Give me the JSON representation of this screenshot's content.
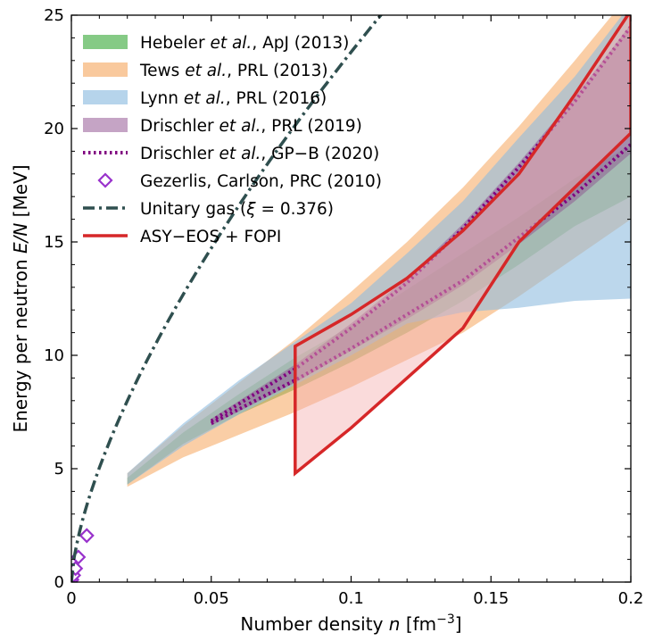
{
  "chart_data": {
    "type": "area",
    "xlabel": "Number density n [fm^-3]",
    "ylabel": "Energy per neutron E/N [MeV]",
    "xlim": [
      0,
      0.2
    ],
    "ylim": [
      0,
      25
    ],
    "x_ticks": [
      0,
      0.05,
      0.1,
      0.15,
      0.2
    ],
    "x_tick_labels": [
      "0",
      "0.05",
      "0.1",
      "0.15",
      "0.2"
    ],
    "y_ticks": [
      0,
      5,
      10,
      15,
      20,
      25
    ],
    "y_tick_labels": [
      "0",
      "5",
      "10",
      "15",
      "20",
      "25"
    ],
    "legend_position": "top-left",
    "grid": false,
    "series": [
      {
        "name": "Hebeler et al., ApJ (2013)",
        "kind": "band",
        "color": "#5cb85c",
        "opacity": 0.7,
        "x": [
          0.02,
          0.04,
          0.06,
          0.08,
          0.1,
          0.12,
          0.14,
          0.16,
          0.18,
          0.2
        ],
        "upper": [
          4.6,
          6.6,
          8.3,
          9.9,
          11.3,
          12.9,
          14.5,
          16.1,
          17.8,
          19.3
        ],
        "lower": [
          4.3,
          6.1,
          7.4,
          8.5,
          9.7,
          11.0,
          12.4,
          14.0,
          15.7,
          17.0
        ]
      },
      {
        "name": "Tews et al., PRL (2013)",
        "kind": "band",
        "color": "#f5a55c",
        "opacity": 0.55,
        "x": [
          0.02,
          0.04,
          0.06,
          0.08,
          0.1,
          0.12,
          0.14,
          0.16,
          0.18,
          0.2
        ],
        "upper": [
          4.8,
          6.9,
          8.8,
          10.7,
          12.8,
          15.0,
          17.4,
          20.1,
          23.0,
          26.0
        ],
        "lower": [
          4.2,
          5.5,
          6.5,
          7.5,
          8.6,
          9.8,
          11.0,
          12.6,
          14.3,
          16.0
        ]
      },
      {
        "name": "Lynn et al., PRL (2016)",
        "kind": "band",
        "color": "#8fbde0",
        "opacity": 0.6,
        "x": [
          0.02,
          0.04,
          0.06,
          0.08,
          0.1,
          0.12,
          0.14,
          0.16,
          0.18,
          0.2
        ],
        "upper": [
          4.8,
          7.0,
          8.9,
          10.6,
          12.3,
          14.5,
          16.8,
          19.6,
          22.3,
          25.5
        ],
        "lower": [
          4.3,
          6.0,
          7.4,
          8.7,
          10.0,
          11.4,
          11.9,
          12.1,
          12.4,
          12.5
        ]
      },
      {
        "name": "Drischler et al., PRL (2019)",
        "kind": "band",
        "color": "#8b4a8b",
        "opacity": 0.45,
        "x": [
          0.05,
          0.08,
          0.1,
          0.12,
          0.14,
          0.16,
          0.18,
          0.2
        ],
        "upper": [
          7.2,
          9.6,
          11.4,
          13.4,
          15.8,
          18.5,
          21.4,
          24.6
        ],
        "lower": [
          6.9,
          8.8,
          10.2,
          11.6,
          13.1,
          14.9,
          16.8,
          18.9
        ]
      },
      {
        "name": "Drischler et al., GP−B (2020)",
        "kind": "dotted-pair",
        "color": "#800080",
        "x": [
          0.05,
          0.08,
          0.1,
          0.12,
          0.14,
          0.16,
          0.18,
          0.2
        ],
        "upper": [
          7.1,
          9.4,
          11.2,
          13.2,
          15.6,
          18.3,
          21.2,
          24.5
        ],
        "lower": [
          7.0,
          8.9,
          10.3,
          11.8,
          13.3,
          15.2,
          17.1,
          19.3
        ]
      },
      {
        "name": "Gezerlis, Carlson, PRC (2010)",
        "kind": "markers",
        "color": "#9932cc",
        "x": [
          0.0002,
          0.0008,
          0.0015,
          0.0025,
          0.0055
        ],
        "y": [
          0.1,
          0.3,
          0.6,
          1.1,
          2.05
        ]
      },
      {
        "name": "Unitary gas (ξ = 0.376)",
        "kind": "line",
        "color": "#2f4f4f",
        "curve": "power",
        "coefficient": 108.5,
        "exponent": 0.6667,
        "x_range": [
          0,
          0.2
        ]
      },
      {
        "name": "ASY−EOS + FOPI",
        "kind": "outline",
        "color": "#d62728",
        "fill": "#f4b0b0",
        "opacity": 0.45,
        "x": [
          0.08,
          0.1,
          0.12,
          0.14,
          0.16,
          0.18,
          0.2,
          0.2,
          0.18,
          0.16,
          0.14,
          0.12,
          0.1,
          0.08
        ],
        "y": [
          10.4,
          11.8,
          13.4,
          15.5,
          18.0,
          21.5,
          25.2,
          19.8,
          17.4,
          15.0,
          11.2,
          9.0,
          6.8,
          4.8
        ]
      }
    ]
  },
  "legend": [
    {
      "swatch": "band",
      "color": "#5cb85c",
      "opacity": 0.75,
      "pre": "Hebeler ",
      "ital": "et al.",
      "post": ", ApJ (2013)"
    },
    {
      "swatch": "band",
      "color": "#f5a55c",
      "opacity": 0.6,
      "pre": "Tews ",
      "ital": "et al.",
      "post": ", PRL (2013)"
    },
    {
      "swatch": "band",
      "color": "#8fbde0",
      "opacity": 0.65,
      "pre": "Lynn ",
      "ital": "et al.",
      "post": ", PRL (2016)"
    },
    {
      "swatch": "band",
      "color": "#8b4a8b",
      "opacity": 0.5,
      "pre": "Drischler ",
      "ital": "et al.",
      "post": ", PRL (2019)"
    },
    {
      "swatch": "dotted",
      "color": "#800080",
      "pre": "Drischler ",
      "ital": "et al.",
      "post": ", GP−B (2020)"
    },
    {
      "swatch": "diamond",
      "color": "#9932cc",
      "pre": "Gezerlis, Carlson, PRC (2010)",
      "ital": "",
      "post": ""
    },
    {
      "swatch": "dashdot",
      "color": "#2f4f4f",
      "pre": "Unitary gas (",
      "ital": "ξ",
      "post": " = 0.376)"
    },
    {
      "swatch": "solid",
      "color": "#d62728",
      "pre": "ASY−EOS + FOPI",
      "ital": "",
      "post": ""
    }
  ],
  "labels": {
    "x_pre": "Number density ",
    "x_var": "n",
    "x_unit": " [fm",
    "x_exp": "−3",
    "x_close": "]",
    "y_pre": "Energy per neutron ",
    "y_var": "E/N",
    "y_unit": " [MeV]"
  }
}
